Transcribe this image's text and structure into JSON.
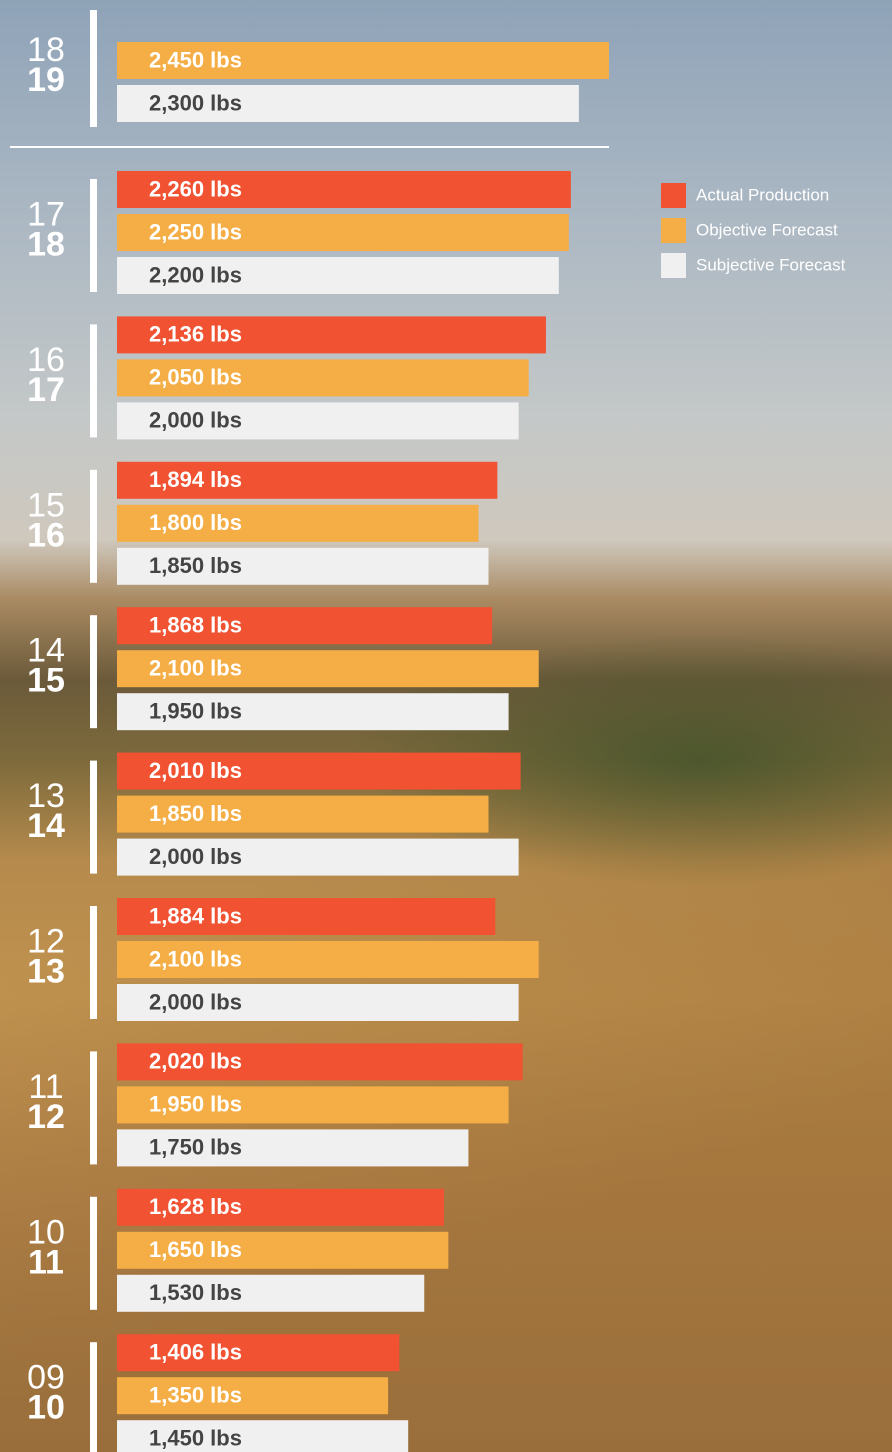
{
  "chart_data": {
    "type": "bar",
    "orientation": "horizontal",
    "categories": [
      [
        "18",
        "19"
      ],
      [
        "17",
        "18"
      ],
      [
        "16",
        "17"
      ],
      [
        "15",
        "16"
      ],
      [
        "14",
        "15"
      ],
      [
        "13",
        "14"
      ],
      [
        "12",
        "13"
      ],
      [
        "11",
        "12"
      ],
      [
        "10",
        "11"
      ],
      [
        "09",
        "10"
      ]
    ],
    "series": [
      {
        "name": "Actual Production",
        "color": "#f05232",
        "values": [
          null,
          2260,
          2136,
          1894,
          1868,
          2010,
          1884,
          2020,
          1628,
          1406
        ],
        "value_labels": [
          null,
          "2,260 lbs",
          "2,136 lbs",
          "1,894 lbs",
          "1,868 lbs",
          "2,010 lbs",
          "1,884 lbs",
          "2,020 lbs",
          "1,628 lbs",
          "1,406 lbs"
        ]
      },
      {
        "name": "Objective Forecast",
        "color": "#f5ad45",
        "values": [
          2450,
          2250,
          2050,
          1800,
          2100,
          1850,
          2100,
          1950,
          1650,
          1350
        ],
        "value_labels": [
          "2,450 lbs",
          "2,250 lbs",
          "2,050 lbs",
          "1,800 lbs",
          "2,100 lbs",
          "1,850 lbs",
          "2,100 lbs",
          "1,950 lbs",
          "1,650 lbs",
          "1,350 lbs"
        ]
      },
      {
        "name": "Subjective Forecast",
        "color": "#f0f0f0",
        "values": [
          2300,
          2200,
          2000,
          1850,
          1950,
          2000,
          2000,
          1750,
          1530,
          1450
        ],
        "value_labels": [
          "2,300 lbs",
          "2,200 lbs",
          "2,000 lbs",
          "1,850 lbs",
          "1,950 lbs",
          "2,000 lbs",
          "2,000 lbs",
          "1,750 lbs",
          "1,530 lbs",
          "1,450 lbs"
        ]
      }
    ],
    "xlim": [
      0,
      2450
    ],
    "legend": "top-right"
  }
}
